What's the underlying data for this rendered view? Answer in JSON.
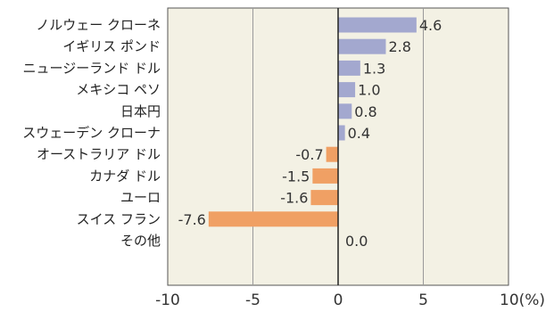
{
  "chart_data": {
    "type": "bar",
    "orientation": "horizontal",
    "categories": [
      "ノルウェー クローネ",
      "イギリス ポンド",
      "ニュージーランド ドル",
      "メキシコ ペソ",
      "日本円",
      "スウェーデン クローナ",
      "オーストラリア ドル",
      "カナダ ドル",
      "ユーロ",
      "スイス フラン",
      "その他"
    ],
    "values": [
      4.6,
      2.8,
      1.3,
      1.0,
      0.8,
      0.4,
      -0.7,
      -1.5,
      -1.6,
      -7.6,
      0.0
    ],
    "value_labels": [
      "4.6",
      "2.8",
      "1.3",
      "1.0",
      "0.8",
      "0.4",
      "-0.7",
      "-1.5",
      "-1.6",
      "-7.6",
      "0.0"
    ],
    "xlim": [
      -10,
      10
    ],
    "xticks": [
      -10,
      -5,
      0,
      5,
      10
    ],
    "xtick_labels": [
      "-10",
      "-5",
      "0",
      "5",
      "10(%)"
    ],
    "grid": true,
    "colors": {
      "positive": "#a3a8cf",
      "negative": "#f0a064",
      "plot_background": "#f3f1e4",
      "grid": "#9a9a9a",
      "zero_line": "#222222"
    }
  }
}
